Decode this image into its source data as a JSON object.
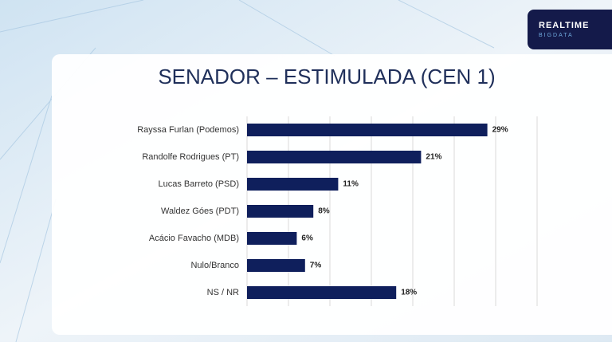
{
  "brand": {
    "line1": "REALTIME",
    "line2": "BIGDATA"
  },
  "chart_data": {
    "type": "hbar",
    "title": "SENADOR – ESTIMULADA (CEN 1)",
    "categories": [
      "Rayssa Furlan (Podemos)",
      "Randolfe Rodrigues (PT)",
      "Lucas Barreto (PSD)",
      "Waldez Góes (PDT)",
      "Acácio Favacho (MDB)",
      "Nulo/Branco",
      "NS / NR"
    ],
    "values": [
      29,
      21,
      11,
      8,
      6,
      7,
      18
    ],
    "value_labels": [
      "29%",
      "21%",
      "11%",
      "8%",
      "6%",
      "7%",
      "18%"
    ],
    "color": "#0f1f5c",
    "xlim": [
      0,
      35
    ],
    "xticks": [
      0,
      5,
      10,
      15,
      20,
      25,
      30,
      35
    ],
    "grid": true
  }
}
